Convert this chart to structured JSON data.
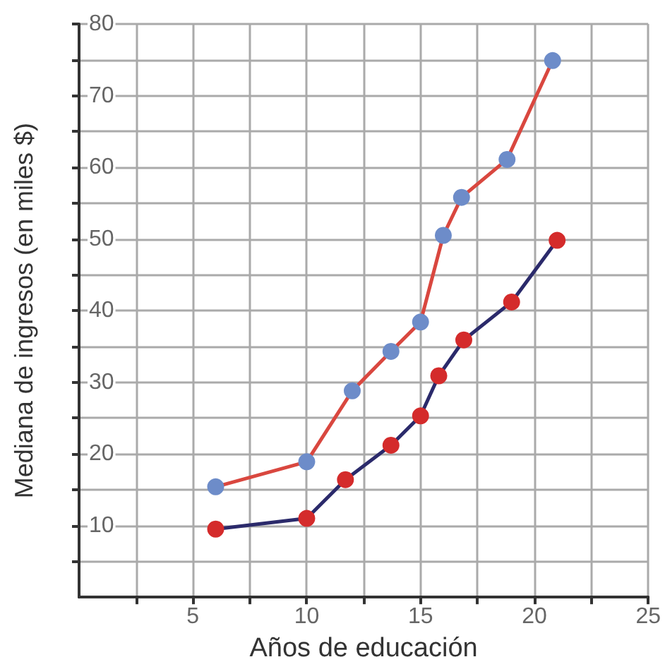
{
  "chart_data": {
    "type": "line",
    "xlabel": "Años de educación",
    "ylabel": "Mediana de ingresos (en miles $)",
    "xlim": [
      0,
      25
    ],
    "xticks": [
      {
        "value": 2.5,
        "label": null
      },
      5,
      {
        "value": 7.5,
        "label": null
      },
      10,
      {
        "value": 12.5,
        "label": null
      },
      15,
      {
        "value": 17.5,
        "label": null
      },
      20,
      {
        "value": 22.5,
        "label": null
      },
      25
    ],
    "ylim": [
      0,
      80
    ],
    "yticks": [
      {
        "value": 5,
        "label": null
      },
      10,
      {
        "value": 15,
        "label": null
      },
      20,
      {
        "value": 25,
        "label": null
      },
      30,
      {
        "value": 35,
        "label": null
      },
      40,
      {
        "value": 45,
        "label": null
      },
      50,
      {
        "value": 55,
        "label": null
      },
      60,
      {
        "value": 65,
        "label": null
      },
      70,
      {
        "value": 75,
        "label": null
      },
      80
    ],
    "grid": true,
    "marker": "circle",
    "line_style": "solid",
    "series": [
      {
        "color": "#d9473f",
        "colors": [
          "#6d8cc9",
          "#6d8cc9",
          "#6d8cc9",
          "#6d8cc9",
          "#6d8cc9",
          "#6d8cc9",
          "#6d8cc9",
          "#6d8cc9",
          "#6d8cc9"
        ],
        "x": [
          6,
          10,
          12,
          13.7,
          15,
          16,
          16.8,
          18.8,
          20.8
        ],
        "values": [
          15.4,
          18.9,
          28.8,
          34.3,
          38.4,
          50.5,
          55.8,
          61.1,
          74.9
        ]
      },
      {
        "color": "#2b2a6b",
        "colors": [
          "#d42b2b",
          "#d42b2b",
          "#d42b2b",
          "#d42b2b",
          "#d42b2b",
          "#d42b2b",
          "#d42b2b",
          "#d42b2b",
          "#d42b2b"
        ],
        "x": [
          6,
          10,
          11.7,
          13.7,
          15,
          15.8,
          16.9,
          19,
          21
        ],
        "values": [
          9.5,
          11,
          16.4,
          21.2,
          25.3,
          30.9,
          35.9,
          41.2,
          49.8
        ]
      }
    ]
  }
}
